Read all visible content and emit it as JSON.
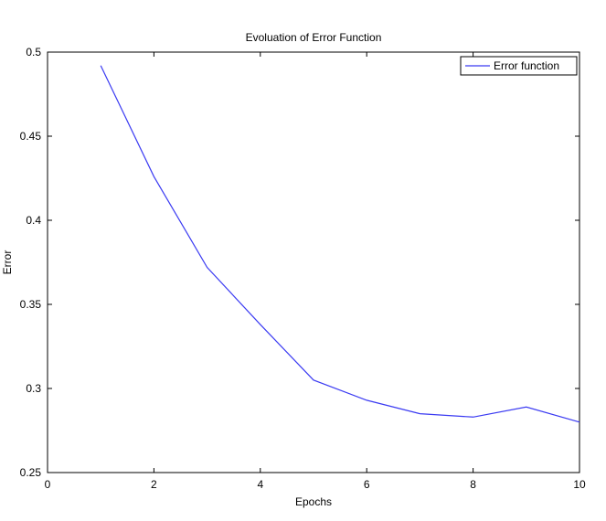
{
  "chart_data": {
    "type": "line",
    "title": "Evoluation of Error Function",
    "xlabel": "Epochs",
    "ylabel": "Error",
    "xlim": [
      0,
      10
    ],
    "ylim": [
      0.25,
      0.5
    ],
    "xticks": [
      0,
      2,
      4,
      6,
      8,
      10
    ],
    "xtick_labels": [
      "0",
      "2",
      "4",
      "6",
      "8",
      "10"
    ],
    "yticks": [
      0.25,
      0.3,
      0.35,
      0.4,
      0.45,
      0.5
    ],
    "ytick_labels": [
      "0.25",
      "0.3",
      "0.35",
      "0.4",
      "0.45",
      "0.5"
    ],
    "grid": false,
    "legend_position": "top-right",
    "series": [
      {
        "name": "Error function",
        "color": "#3a3af2",
        "x": [
          1,
          2,
          3,
          4,
          5,
          6,
          7,
          8,
          9,
          10
        ],
        "y": [
          0.492,
          0.426,
          0.372,
          0.338,
          0.305,
          0.293,
          0.285,
          0.283,
          0.289,
          0.28
        ]
      }
    ]
  }
}
